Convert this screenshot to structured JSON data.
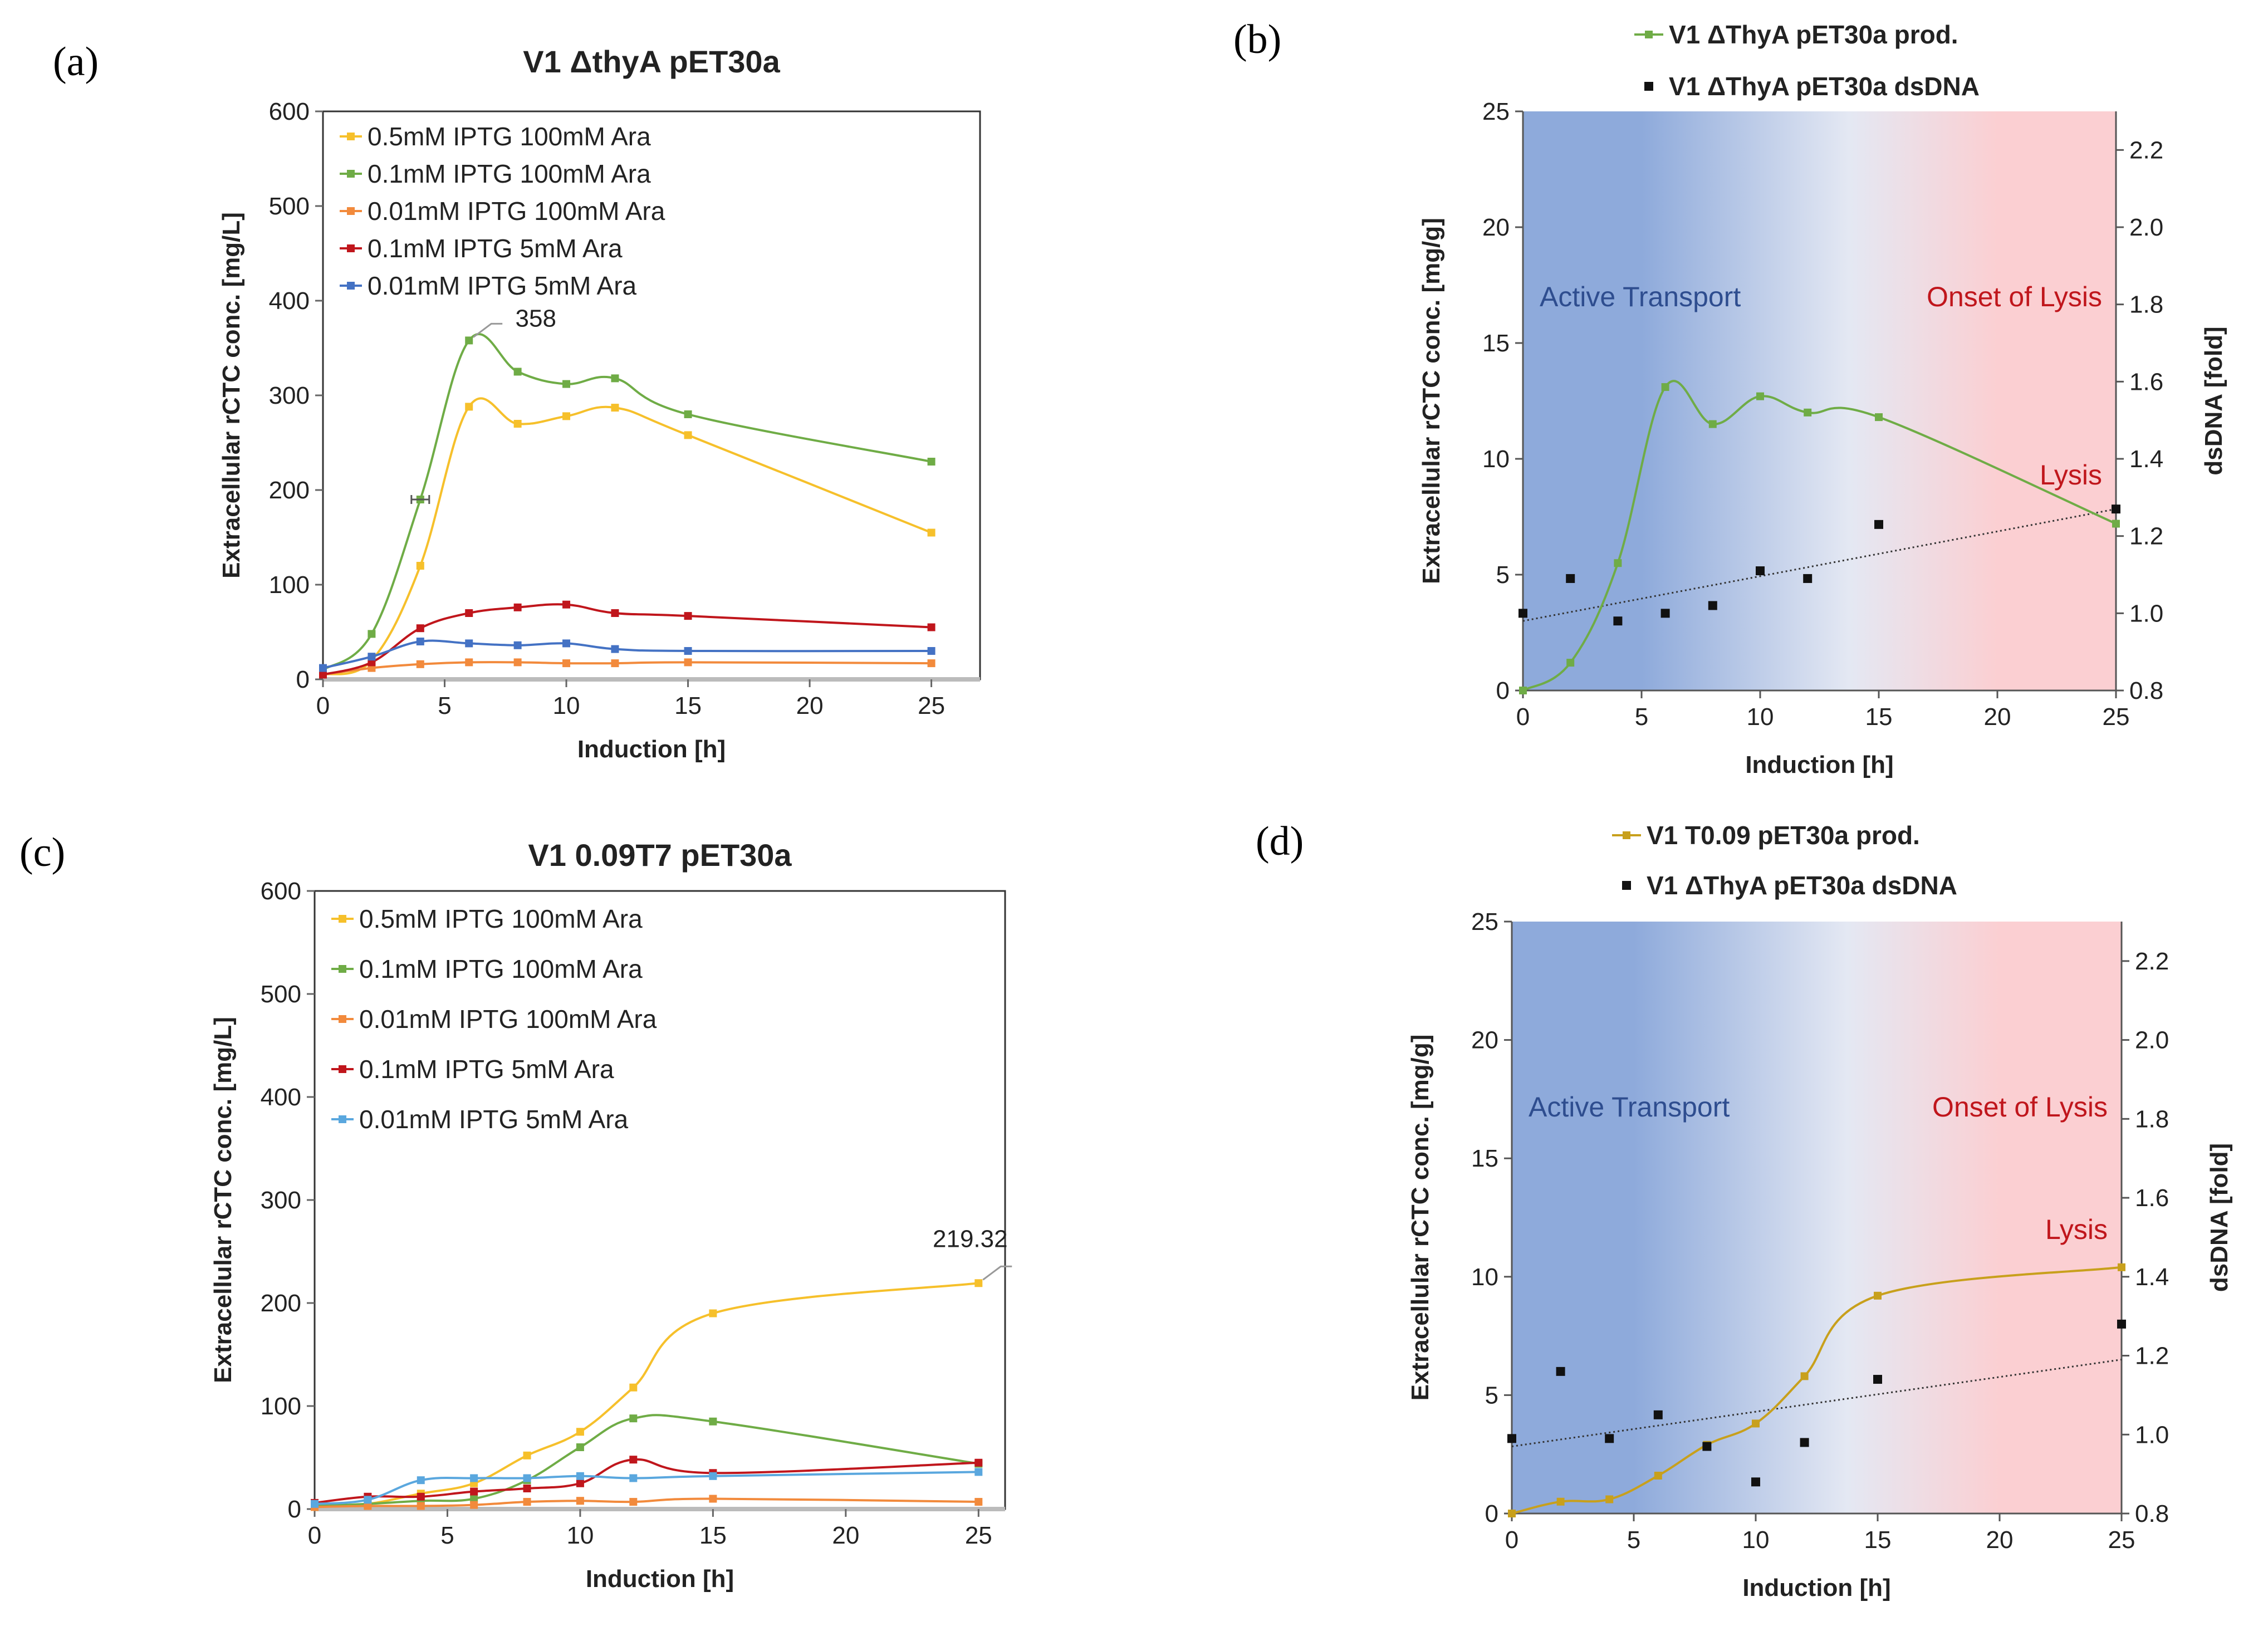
{
  "figure": {
    "panels": [
      "(a)",
      "(b)",
      "(c)",
      "(d)"
    ]
  },
  "colors": {
    "yellow": "#f6c02b",
    "green": "#6fac46",
    "orange": "#f28a3c",
    "red": "#c0161c",
    "blue": "#4472c4",
    "lightblue": "#5aa7de",
    "gold": "#c8a01c",
    "active_region": "#8eaadb",
    "lysis_region": "#fbcfd2",
    "active_text": "#2e4d8f",
    "lysis_text": "#c0161c"
  },
  "chart_data": [
    {
      "id": "a",
      "type": "line",
      "panel_label": "(a)",
      "title": "V1 ΔthyA pET30a",
      "xlabel": "Induction  [h]",
      "ylabel": "Extracellular rCTC conc. [mg/L]",
      "xlim": [
        0,
        27
      ],
      "ylim": [
        0,
        600
      ],
      "xticks": [
        0,
        5,
        10,
        15,
        20,
        25
      ],
      "yticks": [
        0,
        100,
        200,
        300,
        400,
        500,
        600
      ],
      "legend_position": "top-left",
      "x": [
        0,
        2,
        4,
        6,
        8,
        10,
        12,
        15,
        25
      ],
      "series": [
        {
          "name": "0.5mM IPTG 100mM Ara",
          "color_key": "yellow",
          "values": [
            5,
            20,
            120,
            288,
            270,
            278,
            287,
            258,
            155
          ]
        },
        {
          "name": "0.1mM IPTG 100mM Ara",
          "color_key": "green",
          "values": [
            10,
            48,
            190,
            358,
            325,
            312,
            318,
            280,
            230
          ]
        },
        {
          "name": "0.01mM IPTG 100mM Ara",
          "color_key": "orange",
          "values": [
            5,
            12,
            16,
            18,
            18,
            17,
            17,
            18,
            17
          ]
        },
        {
          "name": "0.1mM IPTG 5mM Ara",
          "color_key": "red",
          "values": [
            5,
            18,
            54,
            70,
            76,
            79,
            70,
            67,
            55
          ]
        },
        {
          "name": "0.01mM IPTG 5mM Ara",
          "color_key": "blue",
          "values": [
            12,
            24,
            40,
            38,
            36,
            38,
            32,
            30,
            30
          ]
        }
      ],
      "annotations": [
        {
          "text": "358",
          "x": 6,
          "y": 358
        }
      ]
    },
    {
      "id": "b",
      "type": "line",
      "panel_label": "(b)",
      "legend": [
        "V1 ΔThyA pET30a prod.",
        "V1 ΔThyA pET30a dsDNA"
      ],
      "xlabel": "Induction [h]",
      "ylabel": "Extracellular rCTC conc. [mg/g]",
      "y2label": "dsDNA [fold]",
      "xlim": [
        0,
        25
      ],
      "ylim": [
        0,
        25
      ],
      "y2lim": [
        0.8,
        2.3
      ],
      "xticks": [
        0,
        5,
        10,
        15,
        20,
        25
      ],
      "yticks": [
        0,
        5,
        10,
        15,
        20,
        25
      ],
      "y2ticks": [
        "0.8",
        "1.0",
        "1.2",
        "1.4",
        "1.6",
        "1.8",
        "2.0",
        "2.2"
      ],
      "regions": [
        "Active Transport",
        "Onset of Lysis",
        "Lysis"
      ],
      "prod": {
        "color_key": "green",
        "x": [
          0,
          2,
          4,
          6,
          8,
          10,
          12,
          15,
          25
        ],
        "y": [
          0,
          1.2,
          5.5,
          13.1,
          11.5,
          12.7,
          12.0,
          11.8,
          7.2
        ]
      },
      "dsdna": {
        "x": [
          0,
          2,
          4,
          6,
          8,
          10,
          12,
          15,
          25
        ],
        "y": [
          1.0,
          1.09,
          0.98,
          1.0,
          1.02,
          1.11,
          1.09,
          1.23,
          1.27
        ]
      },
      "trend": {
        "x": [
          0,
          25
        ],
        "y": [
          0.98,
          1.27
        ]
      }
    },
    {
      "id": "c",
      "type": "line",
      "panel_label": "(c)",
      "title": "V1 0.09T7 pET30a",
      "xlabel": "Induction  [h]",
      "ylabel": "Extracellular rCTC conc. [mg/L]",
      "xlim": [
        0,
        26
      ],
      "ylim": [
        0,
        600
      ],
      "xticks": [
        0,
        5,
        10,
        15,
        20,
        25
      ],
      "yticks": [
        0,
        100,
        200,
        300,
        400,
        500,
        600
      ],
      "legend_position": "top-left",
      "x": [
        0,
        2,
        4,
        6,
        8,
        10,
        12,
        15,
        25
      ],
      "series": [
        {
          "name": "0.5mM IPTG 100mM Ara",
          "color_key": "yellow",
          "values": [
            2,
            5,
            15,
            25,
            52,
            75,
            118,
            190,
            219.32
          ]
        },
        {
          "name": "0.1mM IPTG 100mM Ara",
          "color_key": "green",
          "values": [
            3,
            5,
            8,
            10,
            28,
            60,
            88,
            85,
            44
          ]
        },
        {
          "name": "0.01mM IPTG 100mM Ara",
          "color_key": "orange",
          "values": [
            2,
            3,
            3,
            4,
            7,
            8,
            7,
            10,
            7
          ]
        },
        {
          "name": "0.1mM IPTG 5mM Ara",
          "color_key": "red",
          "values": [
            6,
            12,
            12,
            17,
            20,
            25,
            48,
            35,
            45
          ]
        },
        {
          "name": "0.01mM IPTG 5mM Ara",
          "color_key": "lightblue",
          "values": [
            5,
            9,
            28,
            30,
            30,
            32,
            30,
            32,
            36
          ]
        }
      ],
      "annotations": [
        {
          "text": "219.32",
          "x": 25,
          "y": 219.32
        }
      ]
    },
    {
      "id": "d",
      "type": "line",
      "panel_label": "(d)",
      "legend": [
        "V1 T0.09 pET30a prod.",
        "V1 ΔThyA pET30a dsDNA"
      ],
      "xlabel": "Induction [h]",
      "ylabel": "Extracellular rCTC conc. [mg/g]",
      "y2label": "dsDNA [fold]",
      "xlim": [
        0,
        25
      ],
      "ylim": [
        0,
        25
      ],
      "y2lim": [
        0.8,
        2.3
      ],
      "xticks": [
        0,
        5,
        10,
        15,
        20,
        25
      ],
      "yticks": [
        0,
        5,
        10,
        15,
        20,
        25
      ],
      "y2ticks": [
        "0.8",
        "1.0",
        "1.2",
        "1.4",
        "1.6",
        "1.8",
        "2.0",
        "2.2"
      ],
      "regions": [
        "Active Transport",
        "Onset of Lysis",
        "Lysis"
      ],
      "prod": {
        "color_key": "gold",
        "x": [
          0,
          2,
          4,
          6,
          8,
          10,
          12,
          15,
          25
        ],
        "y": [
          0,
          0.5,
          0.6,
          1.6,
          2.9,
          3.8,
          5.8,
          9.2,
          10.4
        ]
      },
      "dsdna": {
        "x": [
          0,
          2,
          4,
          6,
          8,
          10,
          12,
          15,
          25
        ],
        "y": [
          0.99,
          1.16,
          0.99,
          1.05,
          0.97,
          0.88,
          0.98,
          1.14,
          1.28
        ]
      },
      "trend": {
        "x": [
          0,
          25
        ],
        "y": [
          0.97,
          1.19
        ]
      }
    }
  ]
}
